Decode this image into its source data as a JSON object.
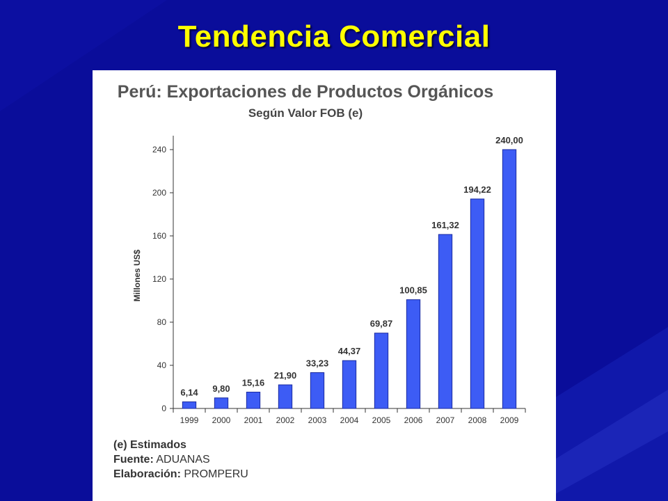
{
  "slide": {
    "title": "Tendencia Comercial"
  },
  "colors": {
    "background": "#0a0d9a",
    "title": "#ffff00",
    "bar": "#3d5cf5",
    "bar_border": "#1a2aa0"
  },
  "chart_data": {
    "type": "bar",
    "title": "Perú: Exportaciones de Productos Orgánicos",
    "subtitle": "Según Valor FOB (e)",
    "ylabel": "Millones US$",
    "xlabel": "",
    "categories": [
      "1999",
      "2000",
      "2001",
      "2002",
      "2003",
      "2004",
      "2005",
      "2006",
      "2007",
      "2008",
      "2009"
    ],
    "values": [
      6.14,
      9.8,
      15.16,
      21.9,
      33.23,
      44.37,
      69.87,
      100.85,
      161.32,
      194.22,
      240.0
    ],
    "value_labels": [
      "6,14",
      "9,80",
      "15,16",
      "21,90",
      "33,23",
      "44,37",
      "69,87",
      "100,85",
      "161,32",
      "194,22",
      "240,00"
    ],
    "ylim": [
      0,
      240
    ],
    "yticks": [
      0,
      40,
      80,
      120,
      160,
      200,
      240
    ],
    "grid": false,
    "legend": "none"
  },
  "notes": {
    "estimados_key": "(e) E",
    "estimados_rest": "stimados",
    "fuente_label": "Fuente:",
    "fuente_value": " ADUANAS",
    "elaboracion_label": "Elaboración:",
    "elaboracion_value": " PROMPERU"
  }
}
